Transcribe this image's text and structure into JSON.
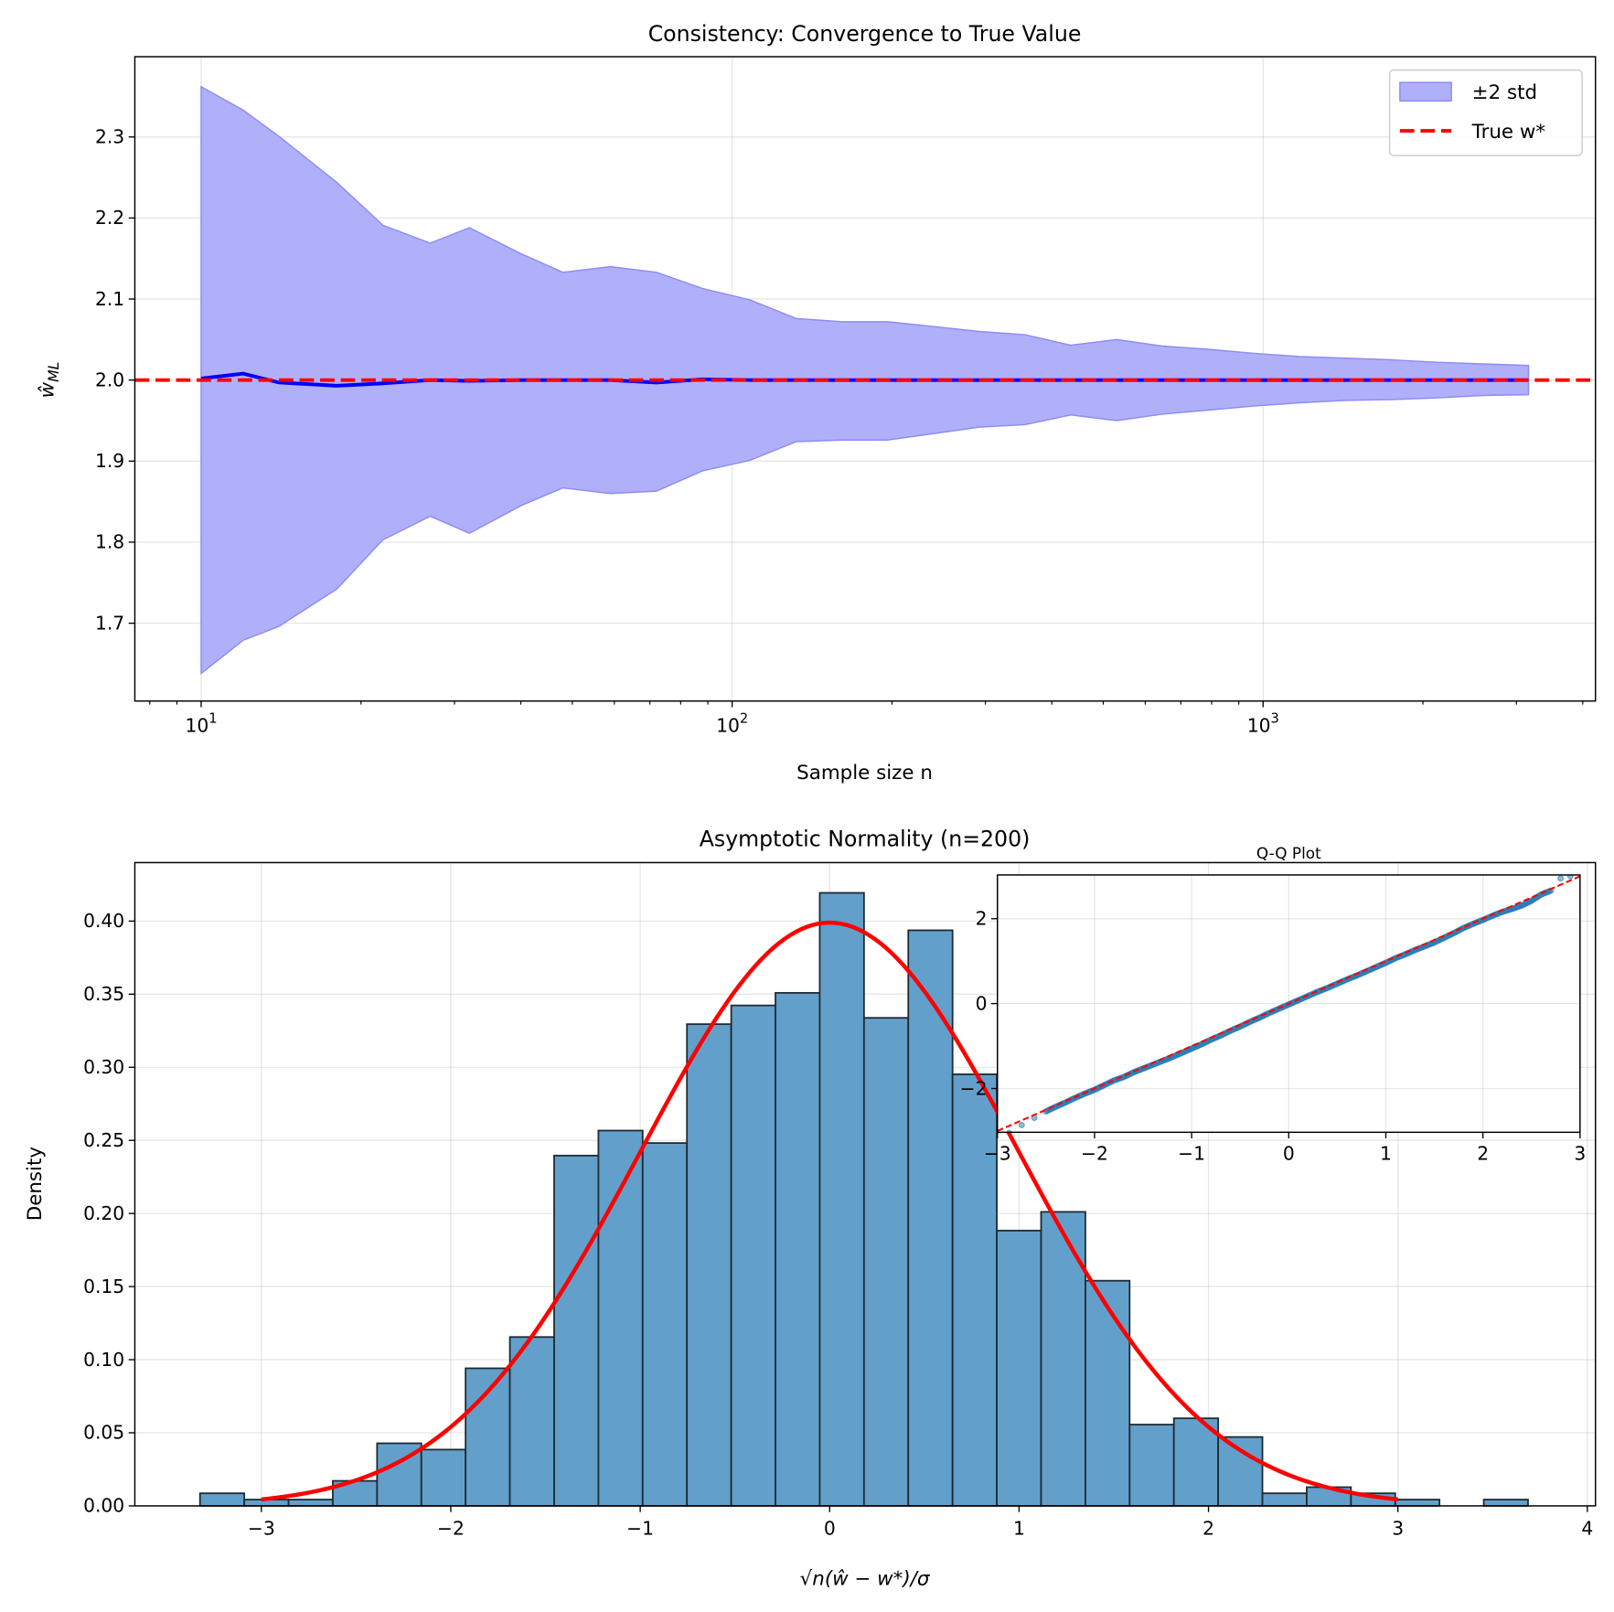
{
  "chart_data": [
    {
      "type": "area",
      "title": "Consistency: Convergence to True Value",
      "xlabel": "Sample size n",
      "ylabel": {
        "base": "ŵ",
        "sub": "ML"
      },
      "xscale": "log",
      "xlim": [
        7.5,
        4227
      ],
      "ylim": [
        1.604,
        2.399
      ],
      "grid": true,
      "x_ticks": [
        10,
        100,
        1000
      ],
      "x_tick_labels": [
        {
          "base": "10",
          "exp": "1"
        },
        {
          "base": "10",
          "exp": "2"
        },
        {
          "base": "10",
          "exp": "3"
        }
      ],
      "y_ticks": [
        1.7,
        1.8,
        1.9,
        2.0,
        2.1,
        2.2,
        2.3
      ],
      "y_tick_labels": [
        "1.7",
        "1.8",
        "1.9",
        "2.0",
        "2.1",
        "2.2",
        "2.3"
      ],
      "legend": {
        "placement": "upper right",
        "entries": [
          "±2 std",
          "True w*"
        ]
      },
      "colors": {
        "band_fill": "#b0b0fa",
        "band_edge": "#8c8cf6",
        "mean_line": "#0000ff",
        "true_line": "#ff0000"
      },
      "x": [
        10,
        12,
        14,
        18,
        22,
        27,
        32,
        40,
        48,
        59,
        72,
        88,
        108,
        132,
        161,
        196,
        240,
        292,
        356,
        434,
        530,
        646,
        788,
        961,
        1172,
        1430,
        1743,
        2126,
        2593,
        3162
      ],
      "series": [
        {
          "name": "±2 std",
          "kind": "band",
          "upper": [
            2.362,
            2.333,
            2.301,
            2.244,
            2.191,
            2.169,
            2.188,
            2.156,
            2.133,
            2.14,
            2.133,
            2.113,
            2.099,
            2.076,
            2.072,
            2.072,
            2.066,
            2.06,
            2.056,
            2.043,
            2.05,
            2.042,
            2.038,
            2.033,
            2.029,
            2.027,
            2.025,
            2.022,
            2.02,
            2.018
          ],
          "lower": [
            1.638,
            1.679,
            1.696,
            1.742,
            1.803,
            1.832,
            1.811,
            1.845,
            1.867,
            1.86,
            1.863,
            1.888,
            1.901,
            1.924,
            1.926,
            1.926,
            1.934,
            1.942,
            1.945,
            1.957,
            1.95,
            1.958,
            1.963,
            1.968,
            1.972,
            1.975,
            1.976,
            1.978,
            1.981,
            1.982
          ]
        },
        {
          "kind": "line",
          "values": [
            2.002,
            2.008,
            1.997,
            1.993,
            1.996,
            2.0,
            1.999,
            2.0,
            2.0,
            2.0,
            1.997,
            2.001,
            2.0,
            2.0,
            2.0,
            2.0,
            2.0,
            2.0,
            2.0,
            2.0,
            2.0,
            2.0,
            2.0,
            2.0,
            2.0,
            2.0,
            2.0,
            2.0,
            2.0,
            2.0
          ]
        },
        {
          "name": "True w*",
          "kind": "hline",
          "value": 2.0
        }
      ]
    },
    {
      "type": "bar",
      "subtype": "histogram",
      "title": "Asymptotic Normality (n=200)",
      "xlabel": "√n(ŵ − w*)/σ",
      "ylabel": "Density",
      "xlim": [
        -3.668,
        4.043
      ],
      "ylim": [
        0,
        0.44
      ],
      "grid": true,
      "x_ticks": [
        -3,
        -2,
        -1,
        0,
        1,
        2,
        3,
        4
      ],
      "x_tick_labels": [
        "−3",
        "−2",
        "−1",
        "0",
        "1",
        "2",
        "3",
        "4"
      ],
      "y_ticks": [
        0,
        0.05,
        0.1,
        0.15,
        0.2,
        0.25,
        0.3,
        0.35,
        0.4
      ],
      "y_tick_labels": [
        "0.00",
        "0.05",
        "0.10",
        "0.15",
        "0.20",
        "0.25",
        "0.30",
        "0.35",
        "0.40"
      ],
      "colors": {
        "bar_fill": "#62a0cb",
        "bar_edge": "#1e2a33",
        "curve": "#ff0000"
      },
      "bin_start": -3.324,
      "bin_width": 0.2337,
      "densities": [
        0.0086,
        0.0043,
        0.0043,
        0.0171,
        0.0428,
        0.0385,
        0.0941,
        0.1155,
        0.2396,
        0.2567,
        0.2482,
        0.3295,
        0.3423,
        0.3509,
        0.4193,
        0.3338,
        0.3937,
        0.2952,
        0.1883,
        0.2011,
        0.154,
        0.0556,
        0.0599,
        0.0471,
        0.0086,
        0.0128,
        0.0086,
        0.0043,
        0.0,
        0.0043
      ],
      "curve": {
        "distribution": "normal",
        "mean": 0,
        "std": 1,
        "x_range": [
          -3,
          3
        ]
      }
    },
    {
      "type": "scatter",
      "title": "Q-Q Plot",
      "xlim": [
        -3,
        3
      ],
      "ylim": [
        -3.03,
        3.03
      ],
      "grid": true,
      "x_ticks": [
        -3,
        -2,
        -1,
        0,
        1,
        2,
        3
      ],
      "x_tick_labels": [
        "−3",
        "−2",
        "−1",
        "0",
        "1",
        "2",
        "3"
      ],
      "y_ticks": [
        -2,
        0,
        2
      ],
      "y_tick_labels": [
        "−2",
        "0",
        "2"
      ],
      "colors": {
        "points": "#1f77b4",
        "reference_line": "#ff0000"
      },
      "reference_line": {
        "slope": 1,
        "intercept": 0
      },
      "points": [
        [
          -3.09,
          -3.17
        ],
        [
          -2.88,
          -3.05
        ],
        [
          -2.75,
          -2.86
        ],
        [
          -2.62,
          -2.69
        ],
        [
          -2.5,
          -2.54
        ],
        [
          -2.4,
          -2.43
        ],
        [
          -2.3,
          -2.33
        ],
        [
          -2.2,
          -2.22
        ],
        [
          -2.1,
          -2.12
        ],
        [
          -2.0,
          -2.03
        ],
        [
          -1.9,
          -1.92
        ],
        [
          -1.8,
          -1.81
        ],
        [
          -1.7,
          -1.73
        ],
        [
          -1.6,
          -1.62
        ],
        [
          -1.5,
          -1.53
        ],
        [
          -1.4,
          -1.44
        ],
        [
          -1.3,
          -1.35
        ],
        [
          -1.2,
          -1.26
        ],
        [
          -1.1,
          -1.16
        ],
        [
          -1.0,
          -1.06
        ],
        [
          -0.9,
          -0.96
        ],
        [
          -0.8,
          -0.85
        ],
        [
          -0.7,
          -0.75
        ],
        [
          -0.6,
          -0.64
        ],
        [
          -0.5,
          -0.54
        ],
        [
          -0.4,
          -0.43
        ],
        [
          -0.3,
          -0.33
        ],
        [
          -0.2,
          -0.22
        ],
        [
          -0.1,
          -0.12
        ],
        [
          0.0,
          -0.02
        ],
        [
          0.1,
          0.08
        ],
        [
          0.2,
          0.18
        ],
        [
          0.3,
          0.28
        ],
        [
          0.4,
          0.37
        ],
        [
          0.5,
          0.47
        ],
        [
          0.6,
          0.57
        ],
        [
          0.7,
          0.66
        ],
        [
          0.8,
          0.76
        ],
        [
          0.9,
          0.86
        ],
        [
          1.0,
          0.96
        ],
        [
          1.1,
          1.07
        ],
        [
          1.2,
          1.16
        ],
        [
          1.3,
          1.26
        ],
        [
          1.4,
          1.35
        ],
        [
          1.5,
          1.44
        ],
        [
          1.6,
          1.55
        ],
        [
          1.7,
          1.66
        ],
        [
          1.8,
          1.78
        ],
        [
          1.9,
          1.88
        ],
        [
          2.0,
          1.97
        ],
        [
          2.1,
          2.07
        ],
        [
          2.2,
          2.16
        ],
        [
          2.3,
          2.23
        ],
        [
          2.4,
          2.31
        ],
        [
          2.5,
          2.42
        ],
        [
          2.6,
          2.57
        ],
        [
          2.7,
          2.66
        ],
        [
          2.8,
          2.95
        ],
        [
          2.9,
          3.0
        ]
      ]
    }
  ]
}
